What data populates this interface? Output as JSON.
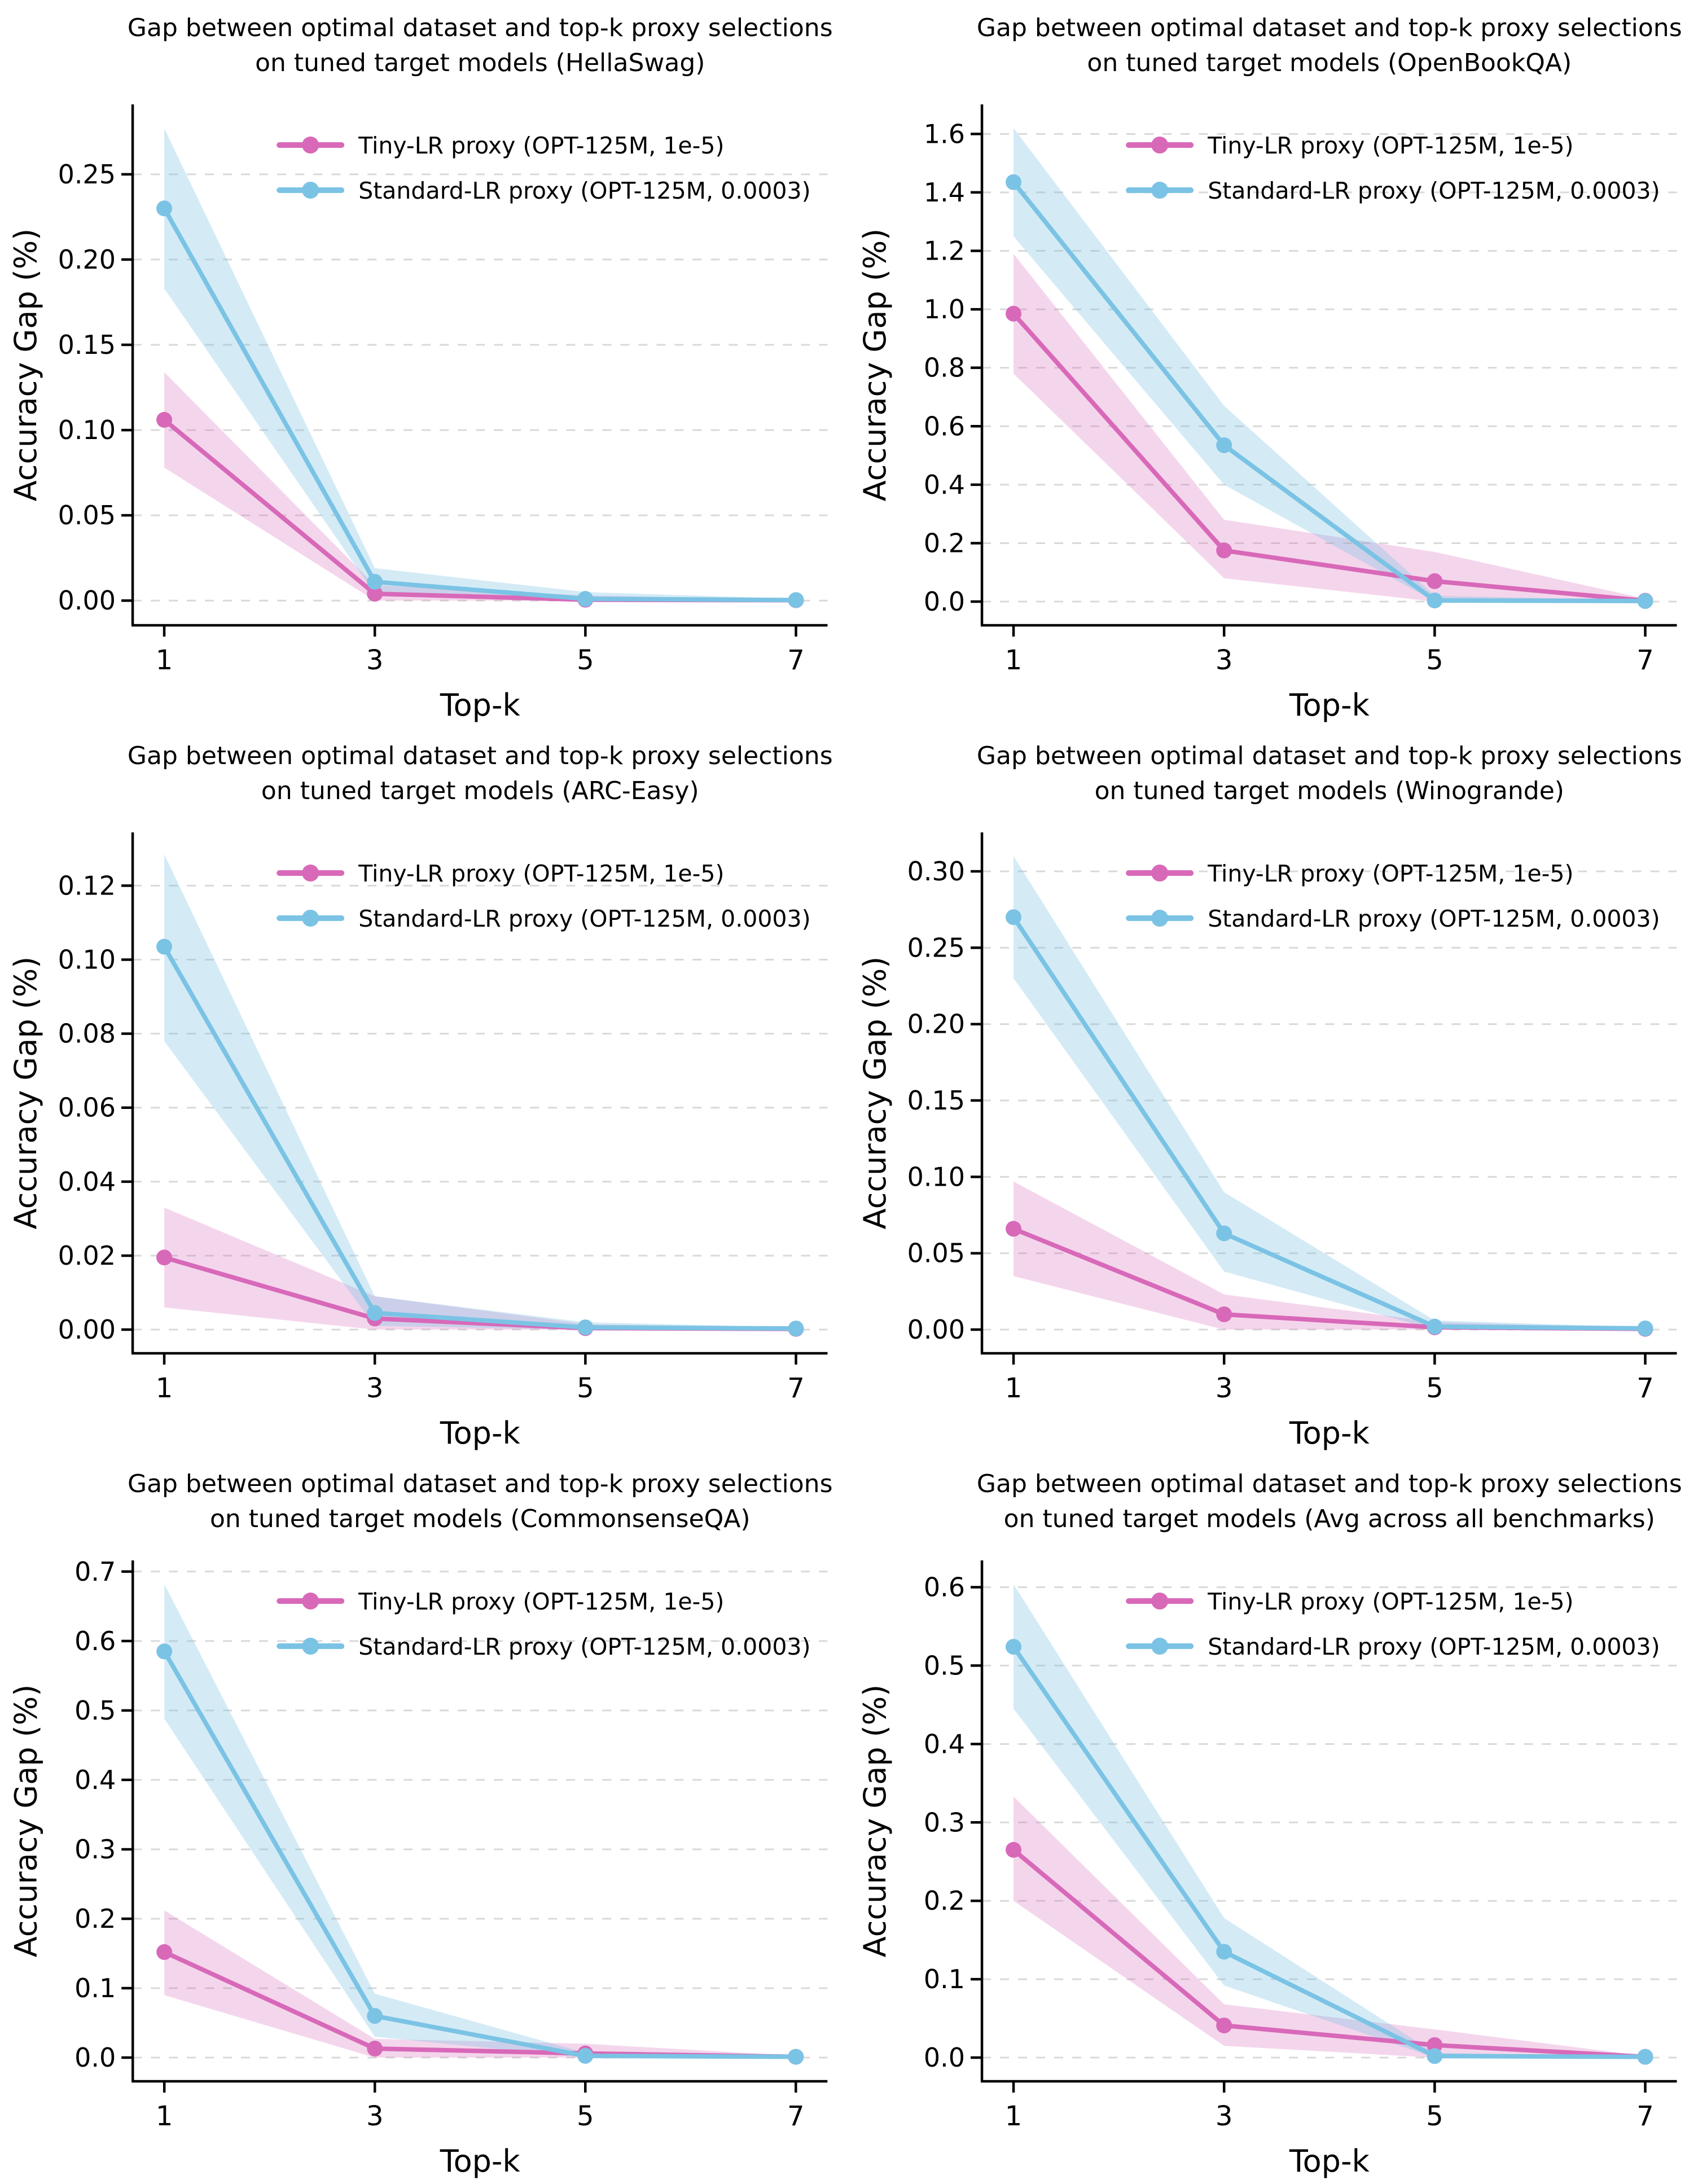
{
  "page": {
    "background": "#FFFFFF",
    "description": "Six line charts in a 2x3 grid comparing proxy selection quality across benchmarks"
  },
  "colors": {
    "tiny_line": "#D869B9",
    "tiny_fill": "#D869B9",
    "tiny_fill_opacity": 0.27,
    "standard_line": "#7BC3E4",
    "standard_fill": "#7BC3E4",
    "standard_fill_opacity": 0.33,
    "grid": "#D9D9D9",
    "axis": "#000000",
    "text": "#000000"
  },
  "legend": {
    "items": [
      {
        "series": "tiny",
        "label": "Tiny-LR proxy (OPT-125M, 1e-5)"
      },
      {
        "series": "standard",
        "label": "Standard-LR proxy (OPT-125M, 0.0003)"
      }
    ]
  },
  "chart_data": [
    {
      "type": "line",
      "benchmark": "HellaSwag",
      "title_lines": [
        "Gap between optimal dataset and top-k proxy selections",
        "on tuned target models (HellaSwag)"
      ],
      "xlabel": "Top-k",
      "ylabel": "Accuracy Gap (%)",
      "x": [
        1,
        3,
        5,
        7
      ],
      "xtick_labels": [
        "1",
        "3",
        "5",
        "7"
      ],
      "xlim": [
        0.7,
        7.3
      ],
      "ylim": [
        -0.0145,
        0.291
      ],
      "yticks": [
        0.0,
        0.05,
        0.1,
        0.15,
        0.2,
        0.25
      ],
      "ytick_labels": [
        "0.00",
        "0.05",
        "0.10",
        "0.15",
        "0.20",
        "0.25"
      ],
      "grid": "horizontal-dashed",
      "legend_position": "upper-center",
      "series": [
        {
          "key": "tiny",
          "name": "Tiny-LR proxy (OPT-125M, 1e-5)",
          "values": [
            0.106,
            0.004,
            0.0005,
            0.0002
          ],
          "band_lower": [
            0.078,
            0.0,
            0.0,
            0.0
          ],
          "band_upper": [
            0.134,
            0.009,
            0.003,
            0.0005
          ]
        },
        {
          "key": "standard",
          "name": "Standard-LR proxy (OPT-125M, 0.0003)",
          "values": [
            0.23,
            0.011,
            0.001,
            0.0003
          ],
          "band_lower": [
            0.183,
            0.004,
            0.0,
            0.0
          ],
          "band_upper": [
            0.277,
            0.019,
            0.005,
            0.001
          ]
        }
      ]
    },
    {
      "type": "line",
      "benchmark": "OpenBookQA",
      "title_lines": [
        "Gap between optimal dataset and top-k proxy selections",
        "on tuned target models (OpenBookQA)"
      ],
      "xlabel": "Top-k",
      "ylabel": "Accuracy Gap (%)",
      "x": [
        1,
        3,
        5,
        7
      ],
      "xtick_labels": [
        "1",
        "3",
        "5",
        "7"
      ],
      "xlim": [
        0.7,
        7.3
      ],
      "ylim": [
        -0.081,
        1.701
      ],
      "yticks": [
        0.0,
        0.2,
        0.4,
        0.6,
        0.8,
        1.0,
        1.2,
        1.4,
        1.6
      ],
      "ytick_labels": [
        "0.0",
        "0.2",
        "0.4",
        "0.6",
        "0.8",
        "1.0",
        "1.2",
        "1.4",
        "1.6"
      ],
      "grid": "horizontal-dashed",
      "legend_position": "upper-center",
      "series": [
        {
          "key": "tiny",
          "name": "Tiny-LR proxy (OPT-125M, 1e-5)",
          "values": [
            0.985,
            0.175,
            0.07,
            0.003
          ],
          "band_lower": [
            0.78,
            0.08,
            0.0,
            0.0
          ],
          "band_upper": [
            1.19,
            0.28,
            0.17,
            0.01
          ]
        },
        {
          "key": "standard",
          "name": "Standard-LR proxy (OPT-125M, 0.0003)",
          "values": [
            1.435,
            0.535,
            0.004,
            0.002
          ],
          "band_lower": [
            1.25,
            0.4,
            0.0,
            0.0
          ],
          "band_upper": [
            1.62,
            0.67,
            0.02,
            0.005
          ]
        }
      ]
    },
    {
      "type": "line",
      "benchmark": "ARC-Easy",
      "title_lines": [
        "Gap between optimal dataset and top-k proxy selections",
        "on tuned target models (ARC-Easy)"
      ],
      "xlabel": "Top-k",
      "ylabel": "Accuracy Gap (%)",
      "x": [
        1,
        3,
        5,
        7
      ],
      "xtick_labels": [
        "1",
        "3",
        "5",
        "7"
      ],
      "xlim": [
        0.7,
        7.3
      ],
      "ylim": [
        -0.0064,
        0.1344
      ],
      "yticks": [
        0.0,
        0.02,
        0.04,
        0.06,
        0.08,
        0.1,
        0.12
      ],
      "ytick_labels": [
        "0.00",
        "0.02",
        "0.04",
        "0.06",
        "0.08",
        "0.10",
        "0.12"
      ],
      "grid": "horizontal-dashed",
      "legend_position": "upper-center",
      "series": [
        {
          "key": "tiny",
          "name": "Tiny-LR proxy (OPT-125M, 1e-5)",
          "values": [
            0.0195,
            0.003,
            0.0004,
            0.0002
          ],
          "band_lower": [
            0.006,
            0.0,
            0.0,
            0.0
          ],
          "band_upper": [
            0.033,
            0.009,
            0.0015,
            0.0005
          ]
        },
        {
          "key": "standard",
          "name": "Standard-LR proxy (OPT-125M, 0.0003)",
          "values": [
            0.1035,
            0.0045,
            0.0006,
            0.0003
          ],
          "band_lower": [
            0.078,
            0.001,
            0.0,
            0.0
          ],
          "band_upper": [
            0.1285,
            0.009,
            0.002,
            0.0006
          ]
        }
      ]
    },
    {
      "type": "line",
      "benchmark": "Winogrande",
      "title_lines": [
        "Gap between optimal dataset and top-k proxy selections",
        "on tuned target models (Winogrande)"
      ],
      "xlabel": "Top-k",
      "ylabel": "Accuracy Gap (%)",
      "x": [
        1,
        3,
        5,
        7
      ],
      "xtick_labels": [
        "1",
        "3",
        "5",
        "7"
      ],
      "xlim": [
        0.7,
        7.3
      ],
      "ylim": [
        -0.0155,
        0.3255
      ],
      "yticks": [
        0.0,
        0.05,
        0.1,
        0.15,
        0.2,
        0.25,
        0.3
      ],
      "ytick_labels": [
        "0.00",
        "0.05",
        "0.10",
        "0.15",
        "0.20",
        "0.25",
        "0.30"
      ],
      "grid": "horizontal-dashed",
      "legend_position": "upper-center",
      "series": [
        {
          "key": "tiny",
          "name": "Tiny-LR proxy (OPT-125M, 1e-5)",
          "values": [
            0.066,
            0.01,
            0.0015,
            0.0005
          ],
          "band_lower": [
            0.035,
            0.0,
            0.0,
            0.0
          ],
          "band_upper": [
            0.097,
            0.023,
            0.005,
            0.001
          ]
        },
        {
          "key": "standard",
          "name": "Standard-LR proxy (OPT-125M, 0.0003)",
          "values": [
            0.27,
            0.063,
            0.002,
            0.0008
          ],
          "band_lower": [
            0.23,
            0.038,
            0.0,
            0.0
          ],
          "band_upper": [
            0.31,
            0.09,
            0.006,
            0.0015
          ]
        }
      ]
    },
    {
      "type": "line",
      "benchmark": "CommonsenseQA",
      "title_lines": [
        "Gap between optimal dataset and top-k proxy selections",
        "on tuned target models (CommonsenseQA)"
      ],
      "xlabel": "Top-k",
      "ylabel": "Accuracy Gap (%)",
      "x": [
        1,
        3,
        5,
        7
      ],
      "xtick_labels": [
        "1",
        "3",
        "5",
        "7"
      ],
      "xlim": [
        0.7,
        7.3
      ],
      "ylim": [
        -0.0341,
        0.7161
      ],
      "yticks": [
        0.0,
        0.1,
        0.2,
        0.3,
        0.4,
        0.5,
        0.6,
        0.7
      ],
      "ytick_labels": [
        "0.0",
        "0.1",
        "0.2",
        "0.3",
        "0.4",
        "0.5",
        "0.6",
        "0.7"
      ],
      "grid": "horizontal-dashed",
      "legend_position": "upper-center",
      "series": [
        {
          "key": "tiny",
          "name": "Tiny-LR proxy (OPT-125M, 1e-5)",
          "values": [
            0.152,
            0.013,
            0.006,
            0.0012
          ],
          "band_lower": [
            0.09,
            0.0,
            0.0,
            0.0
          ],
          "band_upper": [
            0.212,
            0.027,
            0.02,
            0.0025
          ]
        },
        {
          "key": "standard",
          "name": "Standard-LR proxy (OPT-125M, 0.0003)",
          "values": [
            0.585,
            0.06,
            0.0025,
            0.0012
          ],
          "band_lower": [
            0.488,
            0.03,
            0.0,
            0.0
          ],
          "band_upper": [
            0.682,
            0.092,
            0.007,
            0.0025
          ]
        }
      ]
    },
    {
      "type": "line",
      "benchmark": "Avg across all benchmarks",
      "title_lines": [
        "Gap between optimal dataset and top-k proxy selections",
        "on tuned target models (Avg across all benchmarks)"
      ],
      "xlabel": "Top-k",
      "ylabel": "Accuracy Gap (%)",
      "x": [
        1,
        3,
        5,
        7
      ],
      "xtick_labels": [
        "1",
        "3",
        "5",
        "7"
      ],
      "xlim": [
        0.7,
        7.3
      ],
      "ylim": [
        -0.0302,
        0.6342
      ],
      "yticks": [
        0.0,
        0.1,
        0.2,
        0.3,
        0.4,
        0.5,
        0.6
      ],
      "ytick_labels": [
        "0.0",
        "0.1",
        "0.2",
        "0.3",
        "0.4",
        "0.5",
        "0.6"
      ],
      "grid": "horizontal-dashed",
      "legend_position": "upper-center",
      "series": [
        {
          "key": "tiny",
          "name": "Tiny-LR proxy (OPT-125M, 1e-5)",
          "values": [
            0.265,
            0.041,
            0.016,
            0.001
          ],
          "band_lower": [
            0.2,
            0.015,
            0.0,
            0.0
          ],
          "band_upper": [
            0.333,
            0.068,
            0.036,
            0.002
          ]
        },
        {
          "key": "standard",
          "name": "Standard-LR proxy (OPT-125M, 0.0003)",
          "values": [
            0.524,
            0.135,
            0.002,
            0.001
          ],
          "band_lower": [
            0.445,
            0.092,
            0.0,
            0.0
          ],
          "band_upper": [
            0.604,
            0.178,
            0.006,
            0.002
          ]
        }
      ]
    }
  ]
}
